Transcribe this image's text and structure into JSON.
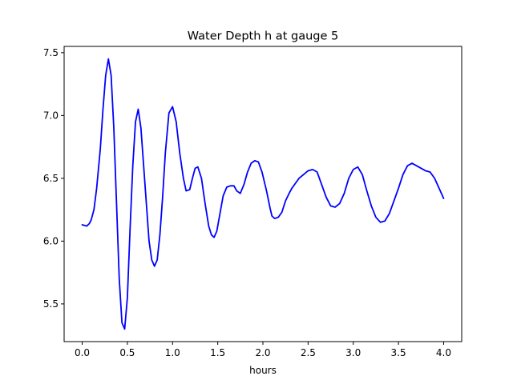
{
  "chart_data": {
    "type": "line",
    "title": "Water Depth h at gauge 5",
    "xlabel": "hours",
    "ylabel": "",
    "xlim": [
      -0.2,
      4.2
    ],
    "ylim": [
      5.2,
      7.55
    ],
    "x_ticks": [
      0.0,
      0.5,
      1.0,
      1.5,
      2.0,
      2.5,
      3.0,
      3.5,
      4.0
    ],
    "x_tick_labels": [
      "0.0",
      "0.5",
      "1.0",
      "1.5",
      "2.0",
      "2.5",
      "3.0",
      "3.5",
      "4.0"
    ],
    "y_ticks": [
      5.5,
      6.0,
      6.5,
      7.0,
      7.5
    ],
    "y_tick_labels": [
      "5.5",
      "6.0",
      "6.5",
      "7.0",
      "7.5"
    ],
    "grid": false,
    "color": "#0000ff",
    "series": [
      {
        "x": [
          0.0,
          0.05,
          0.08,
          0.1,
          0.13,
          0.16,
          0.2,
          0.23,
          0.26,
          0.29,
          0.32,
          0.35,
          0.38,
          0.41,
          0.44,
          0.47,
          0.5,
          0.53,
          0.56,
          0.59,
          0.62,
          0.65,
          0.68,
          0.71,
          0.74,
          0.77,
          0.8,
          0.83,
          0.86,
          0.89,
          0.92,
          0.96,
          1.0,
          1.04,
          1.08,
          1.12,
          1.15,
          1.19,
          1.22,
          1.25,
          1.28,
          1.32,
          1.36,
          1.4,
          1.43,
          1.46,
          1.49,
          1.52,
          1.56,
          1.6,
          1.64,
          1.68,
          1.71,
          1.75,
          1.79,
          1.83,
          1.87,
          1.91,
          1.95,
          1.99,
          2.04,
          2.08,
          2.1,
          2.13,
          2.17,
          2.21,
          2.25,
          2.29,
          2.32,
          2.36,
          2.4,
          2.45,
          2.5,
          2.55,
          2.6,
          2.65,
          2.7,
          2.75,
          2.8,
          2.85,
          2.9,
          2.95,
          3.0,
          3.05,
          3.1,
          3.15,
          3.2,
          3.25,
          3.3,
          3.35,
          3.4,
          3.45,
          3.5,
          3.55,
          3.6,
          3.65,
          3.7,
          3.75,
          3.8,
          3.85,
          3.9,
          3.95,
          4.0
        ],
        "values": [
          6.13,
          6.12,
          6.14,
          6.17,
          6.25,
          6.42,
          6.73,
          7.05,
          7.32,
          7.45,
          7.32,
          6.9,
          6.3,
          5.7,
          5.35,
          5.3,
          5.55,
          6.1,
          6.6,
          6.95,
          7.05,
          6.9,
          6.6,
          6.3,
          6.0,
          5.85,
          5.8,
          5.85,
          6.05,
          6.35,
          6.7,
          7.02,
          7.07,
          6.95,
          6.7,
          6.5,
          6.4,
          6.41,
          6.5,
          6.58,
          6.59,
          6.5,
          6.3,
          6.12,
          6.05,
          6.03,
          6.08,
          6.2,
          6.36,
          6.43,
          6.44,
          6.44,
          6.4,
          6.38,
          6.45,
          6.55,
          6.62,
          6.64,
          6.63,
          6.55,
          6.4,
          6.26,
          6.2,
          6.18,
          6.19,
          6.23,
          6.32,
          6.38,
          6.42,
          6.46,
          6.5,
          6.53,
          6.56,
          6.57,
          6.55,
          6.45,
          6.35,
          6.28,
          6.27,
          6.3,
          6.38,
          6.5,
          6.57,
          6.59,
          6.53,
          6.4,
          6.28,
          6.19,
          6.15,
          6.16,
          6.22,
          6.32,
          6.42,
          6.53,
          6.6,
          6.62,
          6.6,
          6.58,
          6.56,
          6.55,
          6.5,
          6.42,
          6.34
        ]
      }
    ]
  }
}
